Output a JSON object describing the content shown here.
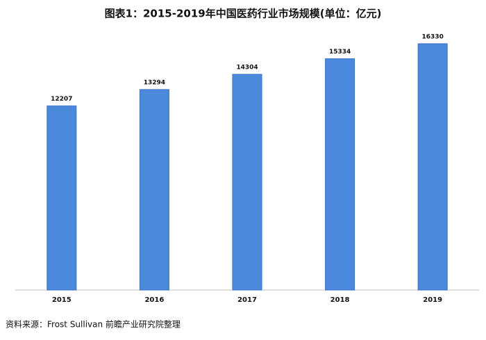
{
  "chart_data": {
    "type": "bar",
    "title": "图表1：2015-2019年中国医药行业市场规模(单位：亿元)",
    "categories": [
      "2015",
      "2016",
      "2017",
      "2018",
      "2019"
    ],
    "values": [
      12207,
      13294,
      14304,
      15334,
      16330
    ],
    "color": "#4a89dc",
    "source": "资料来源：Frost Sullivan 前瞻产业研究院整理"
  }
}
